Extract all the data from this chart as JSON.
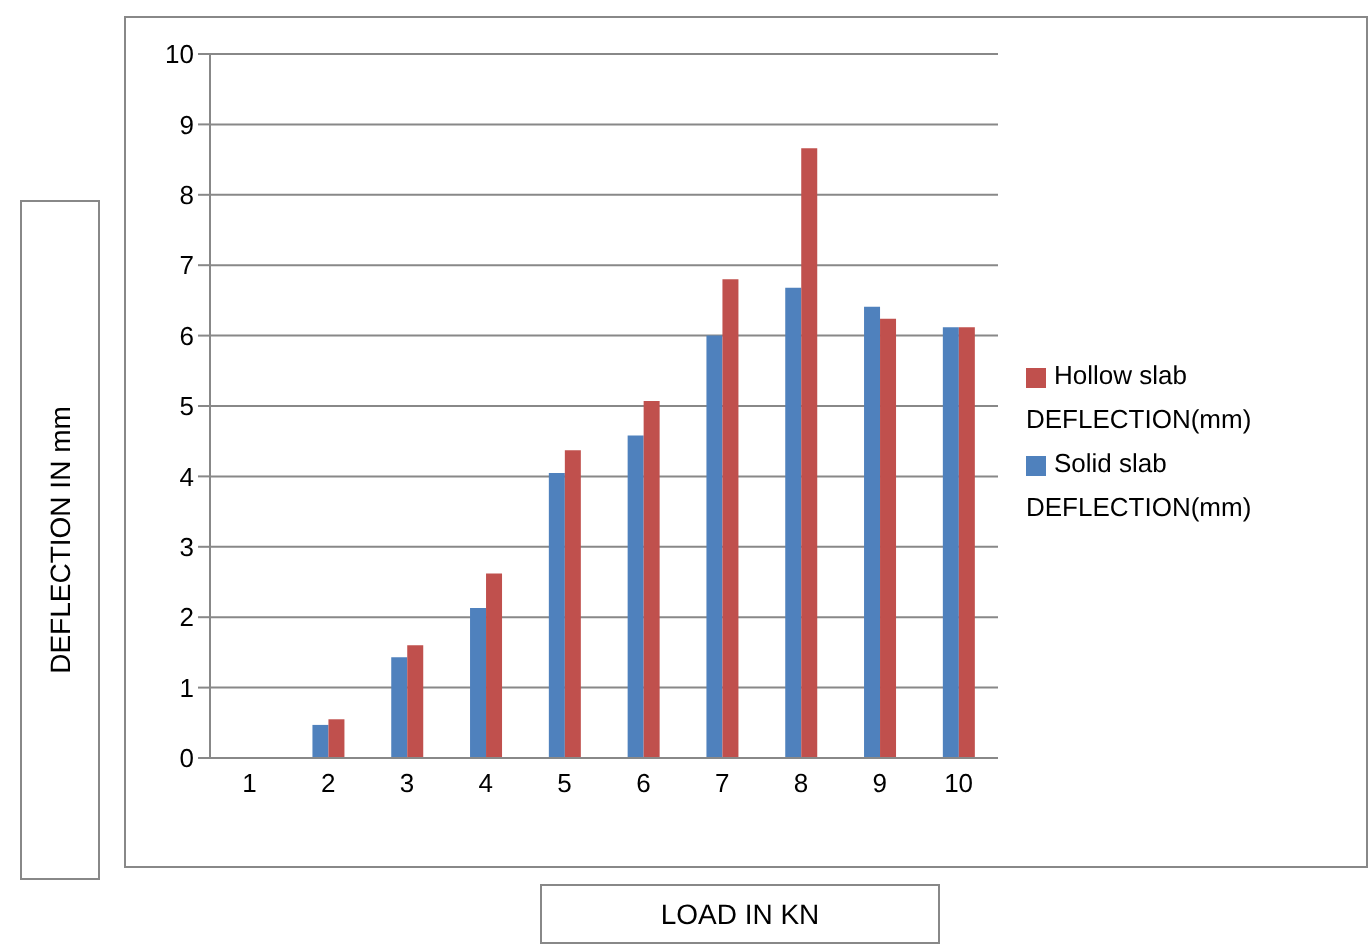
{
  "chart_data": {
    "type": "bar",
    "xlabel": "LOAD IN KN",
    "ylabel": "DEFLECTION  IN mm",
    "categories": [
      "1",
      "2",
      "3",
      "4",
      "5",
      "6",
      "7",
      "8",
      "9",
      "10"
    ],
    "series": [
      {
        "name": "Solid slab DEFLECTION(mm)",
        "color": "#4f81bd",
        "values": [
          0,
          0.47,
          1.43,
          2.13,
          4.05,
          4.58,
          6.0,
          6.68,
          6.41,
          6.12
        ]
      },
      {
        "name": "Hollow slab DEFLECTION(mm)",
        "color": "#c0504d",
        "values": [
          0,
          0.55,
          1.6,
          2.62,
          4.37,
          5.07,
          6.8,
          8.66,
          6.24,
          6.12
        ]
      }
    ],
    "ylim": [
      0,
      10
    ],
    "yticks": [
      0,
      1,
      2,
      3,
      4,
      5,
      6,
      7,
      8,
      9,
      10
    ],
    "grid": "y",
    "legend": "right"
  }
}
